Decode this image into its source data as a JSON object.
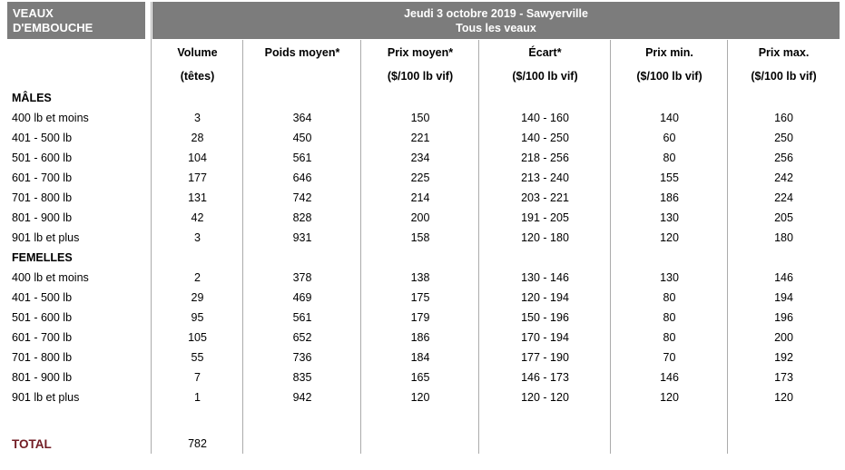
{
  "colors": {
    "header_gray": "#7c7c7c",
    "total_maroon": "#721c24",
    "separator_gray": "#ababab",
    "header_text": "#ffffff",
    "body_text": "#000000"
  },
  "header": {
    "left_box": {
      "line1": "VEAUX",
      "line2": "D'EMBOUCHE"
    },
    "title_bar": {
      "line1": "Jeudi 3 octobre 2019 - Sawyerville",
      "line2": "Tous les veaux"
    }
  },
  "table": {
    "columns": [
      {
        "line1": "",
        "line2": ""
      },
      {
        "line1": "Volume",
        "line2": "(têtes)"
      },
      {
        "line1": "Poids moyen*",
        "line2": ""
      },
      {
        "line1": "Prix moyen*",
        "line2": "($/100 lb vif)"
      },
      {
        "line1": "Écart*",
        "line2": "($/100 lb vif)"
      },
      {
        "line1": "Prix min.",
        "line2": "($/100 lb vif)"
      },
      {
        "line1": "Prix max.",
        "line2": "($/100 lb vif)"
      }
    ],
    "sections": [
      {
        "label": "MÂLES",
        "rows": [
          {
            "label": "400 lb et moins",
            "volume": "3",
            "poids": "364",
            "prix_moyen": "150",
            "ecart": "140 - 160",
            "prix_min": "140",
            "prix_max": "160"
          },
          {
            "label": "401 - 500 lb",
            "volume": "28",
            "poids": "450",
            "prix_moyen": "221",
            "ecart": "140 - 250",
            "prix_min": "60",
            "prix_max": "250"
          },
          {
            "label": "501 - 600 lb",
            "volume": "104",
            "poids": "561",
            "prix_moyen": "234",
            "ecart": "218 - 256",
            "prix_min": "80",
            "prix_max": "256"
          },
          {
            "label": "601 - 700 lb",
            "volume": "177",
            "poids": "646",
            "prix_moyen": "225",
            "ecart": "213 - 240",
            "prix_min": "155",
            "prix_max": "242"
          },
          {
            "label": "701 - 800 lb",
            "volume": "131",
            "poids": "742",
            "prix_moyen": "214",
            "ecart": "203 - 221",
            "prix_min": "186",
            "prix_max": "224"
          },
          {
            "label": "801 - 900 lb",
            "volume": "42",
            "poids": "828",
            "prix_moyen": "200",
            "ecart": "191 - 205",
            "prix_min": "130",
            "prix_max": "205"
          },
          {
            "label": "901 lb et plus",
            "volume": "3",
            "poids": "931",
            "prix_moyen": "158",
            "ecart": "120 - 180",
            "prix_min": "120",
            "prix_max": "180"
          }
        ]
      },
      {
        "label": "FEMELLES",
        "rows": [
          {
            "label": "400 lb et moins",
            "volume": "2",
            "poids": "378",
            "prix_moyen": "138",
            "ecart": "130 - 146",
            "prix_min": "130",
            "prix_max": "146"
          },
          {
            "label": "401 - 500 lb",
            "volume": "29",
            "poids": "469",
            "prix_moyen": "175",
            "ecart": "120 - 194",
            "prix_min": "80",
            "prix_max": "194"
          },
          {
            "label": "501 - 600 lb",
            "volume": "95",
            "poids": "561",
            "prix_moyen": "179",
            "ecart": "150 - 196",
            "prix_min": "80",
            "prix_max": "196"
          },
          {
            "label": "601 - 700 lb",
            "volume": "105",
            "poids": "652",
            "prix_moyen": "186",
            "ecart": "170 - 194",
            "prix_min": "80",
            "prix_max": "200"
          },
          {
            "label": "701 - 800 lb",
            "volume": "55",
            "poids": "736",
            "prix_moyen": "184",
            "ecart": "177 - 190",
            "prix_min": "70",
            "prix_max": "192"
          },
          {
            "label": "801 - 900 lb",
            "volume": "7",
            "poids": "835",
            "prix_moyen": "165",
            "ecart": "146 - 173",
            "prix_min": "146",
            "prix_max": "173"
          },
          {
            "label": "901 lb et plus",
            "volume": "1",
            "poids": "942",
            "prix_moyen": "120",
            "ecart": "120 - 120",
            "prix_min": "120",
            "prix_max": "120"
          }
        ]
      }
    ],
    "total": {
      "label": "TOTAL",
      "volume": "782"
    }
  }
}
